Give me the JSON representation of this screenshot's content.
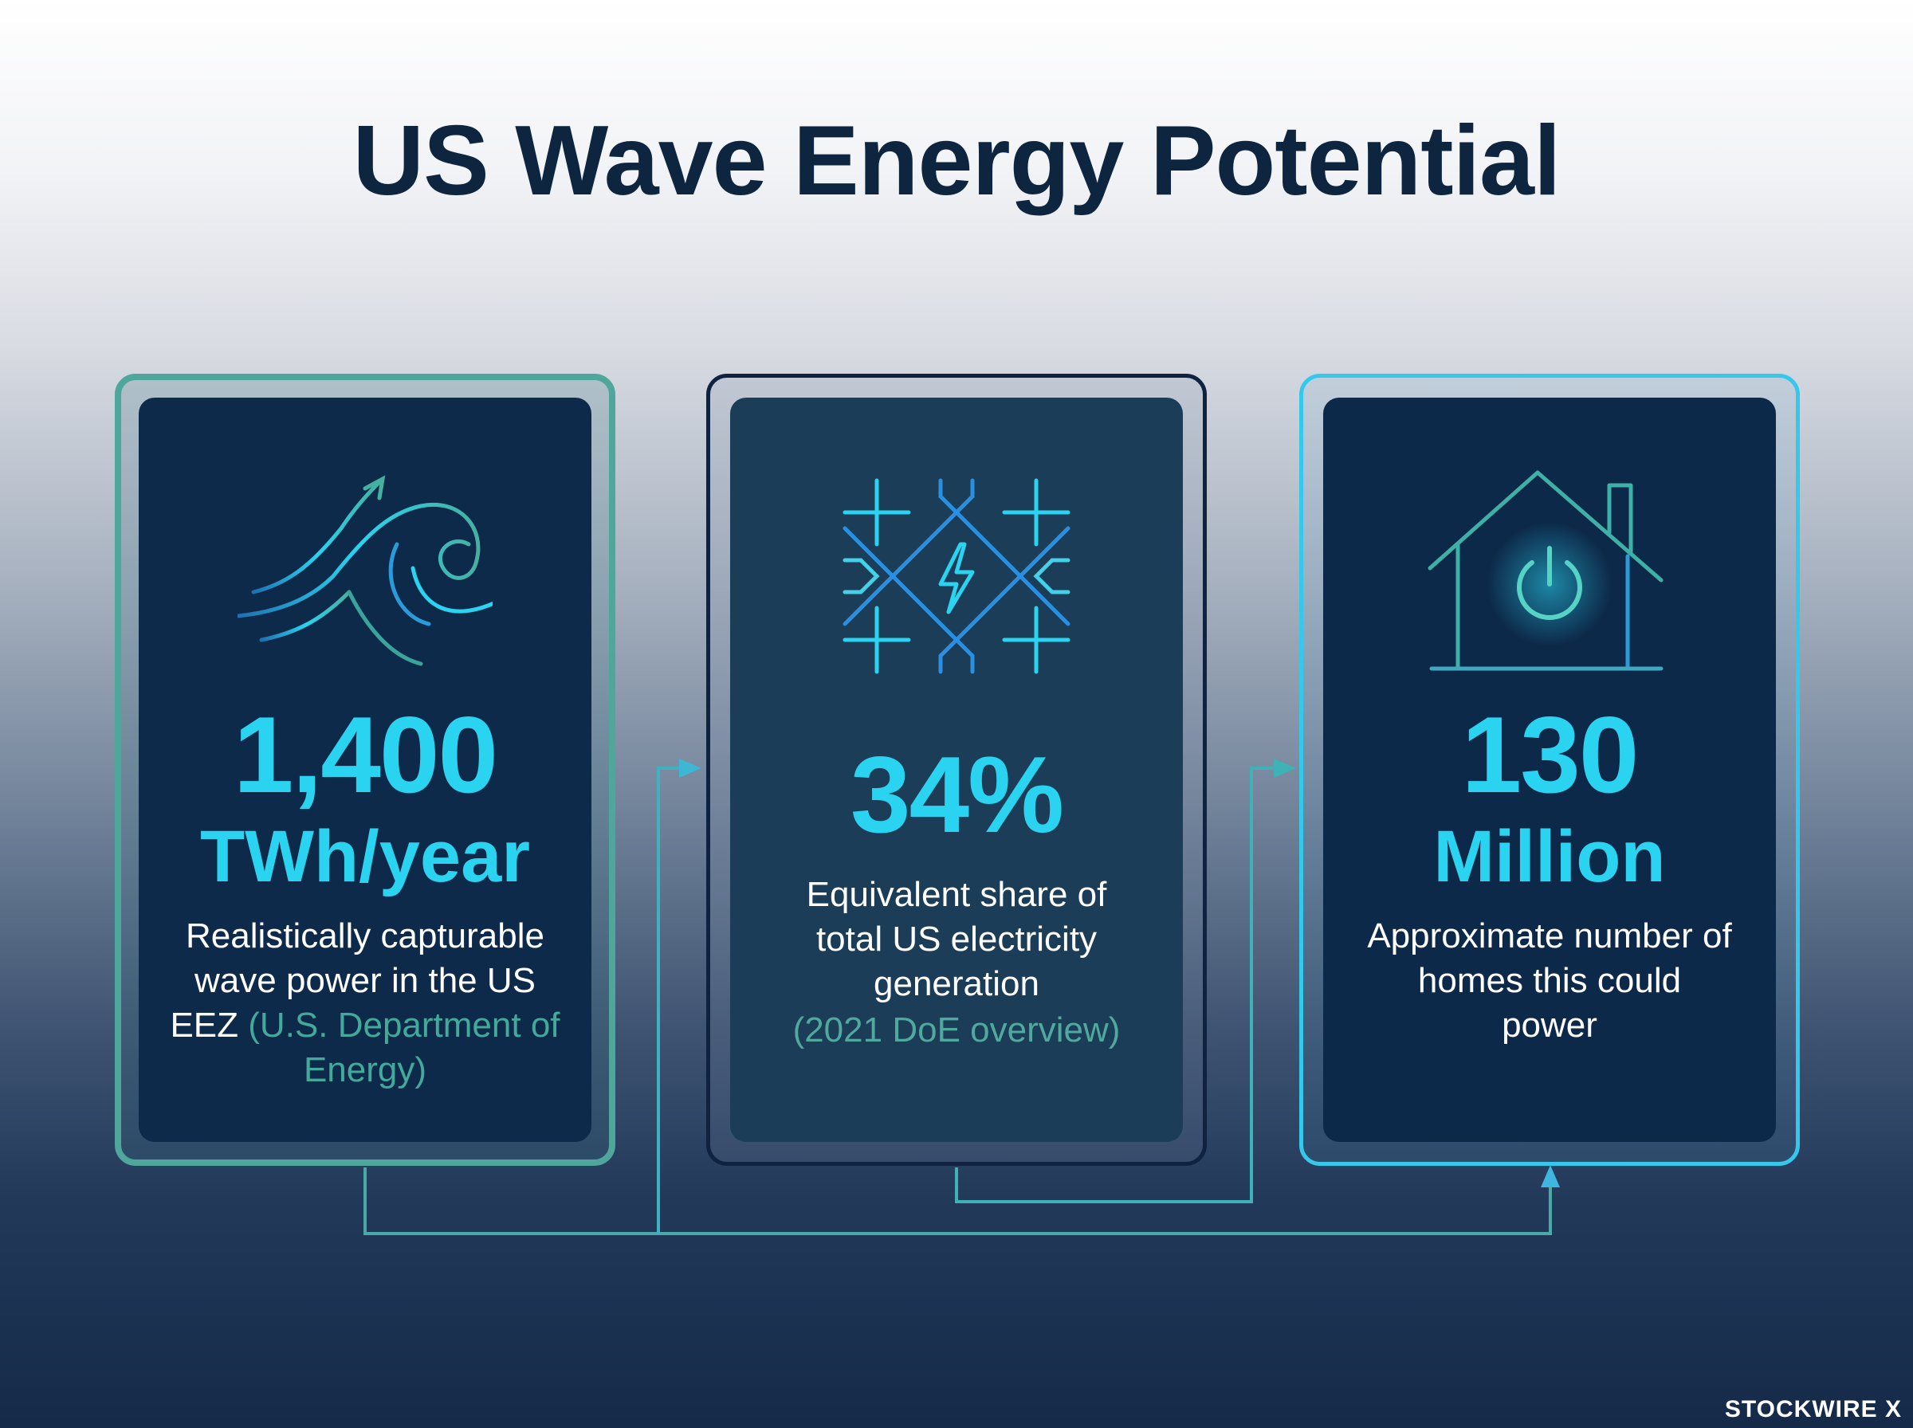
{
  "title": "US Wave Energy Potential",
  "cards": [
    {
      "icon": "wave-icon",
      "value": "1,400",
      "unit": "TWh/year",
      "description": "Realistically capturable wave power in the US EEZ",
      "citation": "(U.S. Department of Energy)"
    },
    {
      "icon": "power-grid-icon",
      "value": "34%",
      "unit": "",
      "description": "Equivalent share of total US electricity generation",
      "citation": "(2021 DoE overview)"
    },
    {
      "icon": "house-power-icon",
      "value": "130",
      "unit": "Million",
      "description": "Approximate number of homes this could power",
      "citation": ""
    }
  ],
  "watermark": "STOCKWIRE X",
  "colors": {
    "accent_cyan": "#2ad3f0",
    "accent_teal": "#4fa69b",
    "title": "#0e2540",
    "card_bg": "#0e2a4a"
  }
}
